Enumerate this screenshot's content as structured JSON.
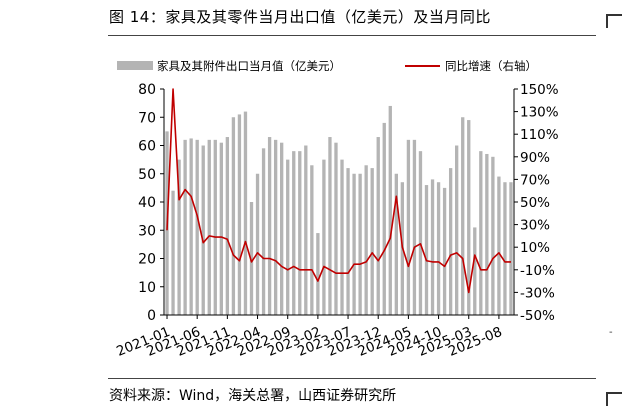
{
  "title": "图 14：家具及其零件当月出口值（亿美元）及当月同比",
  "source": "资料来源：Wind，海关总署，山西证券研究所",
  "colors": {
    "bars": "#b4b4b4",
    "line": "#c00000",
    "axis": "#000000"
  },
  "chart_data": {
    "type": "bar",
    "legend": [
      "家具及其附件出口当月值（亿美元）",
      "同比增速（右轴）"
    ],
    "legend_position": "top",
    "grid": false,
    "ylim_left": [
      0,
      80
    ],
    "yticks_left": [
      "80",
      "70",
      "60",
      "50",
      "40",
      "30",
      "20",
      "10",
      "0"
    ],
    "ylim_right": [
      -50,
      150
    ],
    "yticks_right": [
      "150%",
      "130%",
      "110%",
      "90%",
      "70%",
      "50%",
      "30%",
      "10%",
      "-10%",
      "-30%",
      "-50%"
    ],
    "xticks": [
      "2021-01",
      "2021-06",
      "2021-11",
      "2022-04",
      "2022-09",
      "2023-02",
      "2023-07",
      "2023-12",
      "2024-05",
      "2024-10",
      "2025-03",
      "2025-08"
    ],
    "xticks_index": [
      0,
      5,
      10,
      15,
      20,
      25,
      30,
      35,
      40,
      45,
      50,
      55
    ],
    "categories": [
      "2021-01",
      "2021-02",
      "2021-03",
      "2021-04",
      "2021-05",
      "2021-06",
      "2021-07",
      "2021-08",
      "2021-09",
      "2021-10",
      "2021-11",
      "2021-12",
      "2022-01",
      "2022-02",
      "2022-03",
      "2022-04",
      "2022-05",
      "2022-06",
      "2022-07",
      "2022-08",
      "2022-09",
      "2022-10",
      "2022-11",
      "2022-12",
      "2023-01",
      "2023-02",
      "2023-03",
      "2023-04",
      "2023-05",
      "2023-06",
      "2023-07",
      "2023-08",
      "2023-09",
      "2023-10",
      "2023-11",
      "2023-12",
      "2024-01",
      "2024-02",
      "2024-03",
      "2024-04",
      "2024-05",
      "2024-06",
      "2024-07",
      "2024-08",
      "2024-09",
      "2024-10",
      "2024-11",
      "2024-12",
      "2025-01",
      "2025-02",
      "2025-03",
      "2025-04",
      "2025-05",
      "2025-06",
      "2025-07",
      "2025-08",
      "2025-09",
      "2025-10"
    ],
    "series": [
      {
        "name": "家具及其附件出口当月值（亿美元）",
        "axis": "left",
        "values": [
          65,
          44,
          55,
          62,
          62.5,
          62,
          60,
          62,
          62,
          61,
          63,
          70,
          71,
          72,
          40,
          50,
          59,
          63,
          62,
          61,
          55,
          58,
          58,
          60,
          53,
          29,
          55,
          63,
          61,
          55,
          52,
          50,
          50,
          53,
          52,
          63,
          68,
          74,
          50,
          47,
          62,
          62,
          58,
          46,
          48,
          47,
          45,
          52,
          60,
          70,
          69,
          31,
          58,
          57,
          56,
          49,
          47,
          47
        ]
      },
      {
        "name": "同比增速（右轴）",
        "axis": "right",
        "values": [
          25,
          150,
          52,
          61,
          55,
          38,
          14,
          20,
          19,
          19,
          17,
          3,
          -2,
          15,
          -3,
          5,
          0,
          0,
          -2,
          -7,
          -10,
          -7,
          -10,
          -10,
          -10,
          -20,
          -7,
          -10,
          -13,
          -13,
          -13,
          -5,
          -5,
          -3,
          5,
          -2,
          7,
          18,
          55,
          10,
          -7,
          10,
          13,
          -2,
          -3,
          -3,
          -7,
          3,
          5,
          0,
          -30,
          3,
          -10,
          -10,
          0,
          5,
          -3,
          -3
        ]
      }
    ]
  }
}
